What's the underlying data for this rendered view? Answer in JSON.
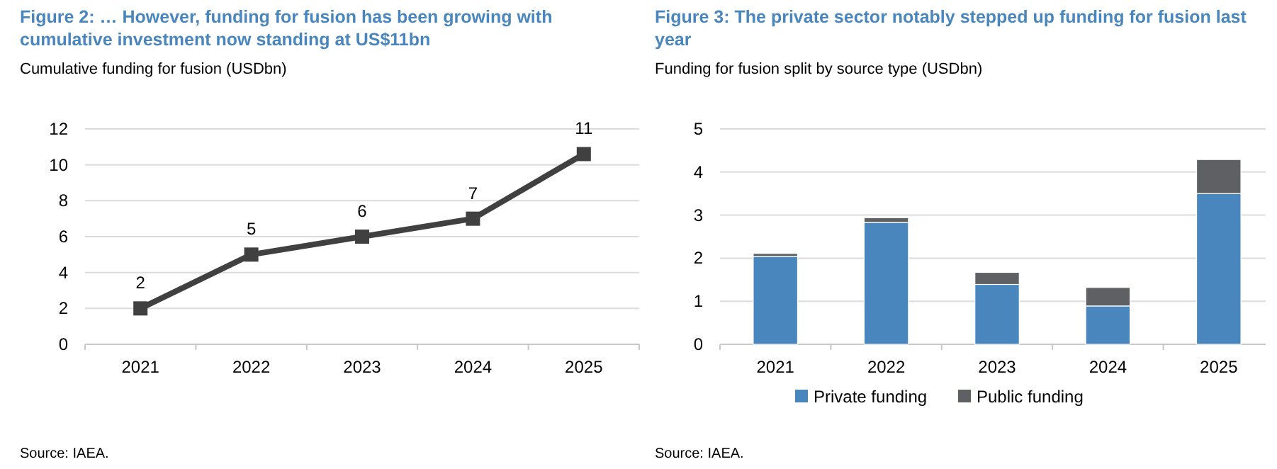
{
  "chart_data": [
    {
      "type": "line",
      "title": "Figure 2: … However, funding for fusion has been growing with cumulative investment now standing at US$11bn",
      "subtitle": "Cumulative funding for fusion (USDbn)",
      "categories": [
        "2021",
        "2022",
        "2023",
        "2024",
        "2025"
      ],
      "series": [
        {
          "color": "#404040",
          "values": [
            2,
            5,
            6,
            7,
            10.6
          ],
          "value_labels": [
            "2",
            "5",
            "6",
            "7",
            "11"
          ]
        }
      ],
      "ylim": [
        0,
        12
      ],
      "yticks": [
        0,
        2,
        4,
        6,
        8,
        10,
        12
      ],
      "grid": "y",
      "marker": "square",
      "line_style": "solid",
      "legend": false,
      "annotations": [
        "Source: IAEA."
      ]
    },
    {
      "type": "bar",
      "stacked": true,
      "title": "Figure 3: The private sector notably stepped up funding for fusion last year",
      "subtitle": "Funding for fusion split by source type (USDbn)",
      "categories": [
        "2021",
        "2022",
        "2023",
        "2024",
        "2025"
      ],
      "series": [
        {
          "name": "Private funding",
          "color": "#4a86be",
          "values": [
            2.04,
            2.83,
            1.39,
            0.89,
            3.5
          ]
        },
        {
          "name": "Public funding",
          "color": "#5f6064",
          "values": [
            0.07,
            0.11,
            0.28,
            0.43,
            0.79
          ]
        }
      ],
      "ylim": [
        0,
        5
      ],
      "yticks": [
        0,
        1,
        2,
        3,
        4,
        5
      ],
      "grid": "y",
      "legend": "bottom",
      "annotations": [
        "Source: IAEA."
      ]
    }
  ]
}
